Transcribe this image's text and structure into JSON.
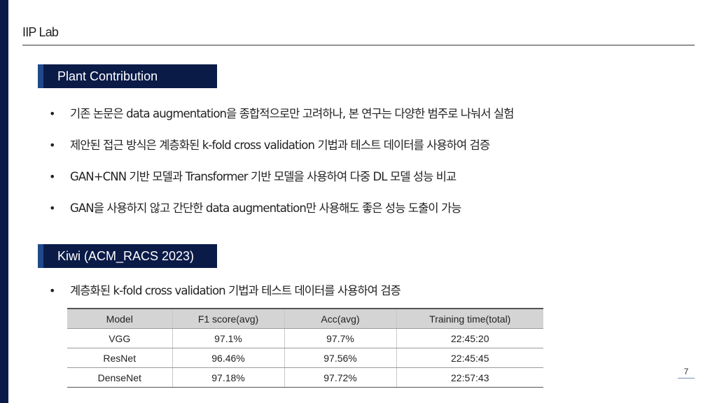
{
  "header": {
    "lab": "IIP Lab"
  },
  "sections": [
    {
      "title": "Plant Contribution",
      "bullets": [
        "기존 논문은 data augmentation을 종합적으로만 고려하나, 본 연구는 다양한 범주로 나눠서 실험",
        "제안된 접근 방식은 계층화된 k-fold cross validation 기법과 테스트 데이터를 사용하여 검증",
        "GAN+CNN 기반 모델과 Transformer 기반 모델을 사용하여 다중 DL 모델 성능 비교",
        "GAN을 사용하지 않고 간단한 data augmentation만 사용해도 좋은 성능 도출이 가능"
      ]
    },
    {
      "title": "Kiwi (ACM_RACS 2023)",
      "bullets": [
        "계층화된 k-fold cross validation 기법과 테스트 데이터를 사용하여 검증"
      ]
    }
  ],
  "table": {
    "headers": [
      "Model",
      "F1 score(avg)",
      "Acc(avg)",
      "Training time(total)"
    ],
    "rows": [
      [
        "VGG",
        "97.1%",
        "97.7%",
        "22:45:20"
      ],
      [
        "ResNet",
        "96.46%",
        "97.56%",
        "22:45:45"
      ],
      [
        "DenseNet",
        "97.18%",
        "97.72%",
        "22:57:43"
      ]
    ]
  },
  "page_number": "7"
}
